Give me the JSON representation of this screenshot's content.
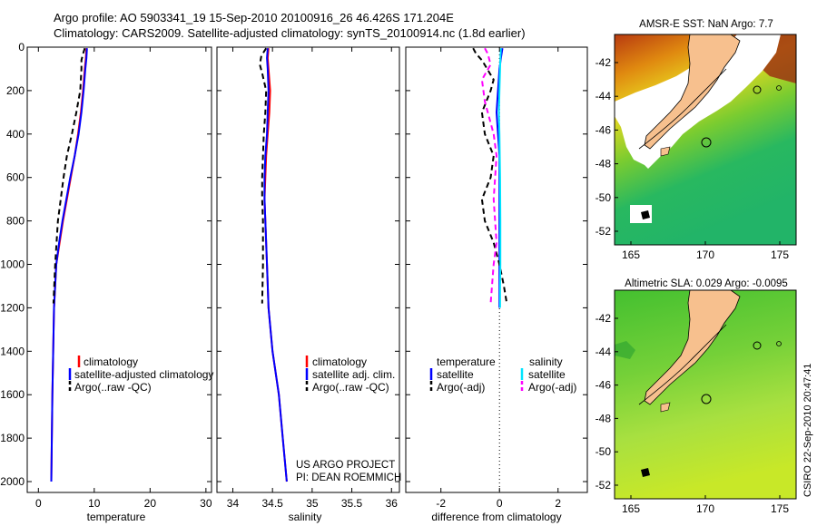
{
  "header": {
    "line1": "Argo profile: AO 5903341_19 15-Sep-2010 20100916_26 46.426S 171.204E",
    "line2": "Climatology: CARS2009. Satellite-adjusted climatology: synTS_20100914.nc (1.8d earlier)"
  },
  "chart_data": [
    {
      "type": "line",
      "id": "temperature",
      "xlabel": "temperature",
      "xlim": [
        -2,
        31
      ],
      "ylim": [
        0,
        2050
      ],
      "xticks": [
        0,
        10,
        20,
        30
      ],
      "xtick_labels": [
        "0",
        "10",
        "20",
        "30"
      ],
      "yticks": [
        0,
        200,
        400,
        600,
        800,
        1000,
        1200,
        1400,
        1600,
        1800,
        2000
      ],
      "ytick_labels": [
        "0",
        "200",
        "400",
        "600",
        "800",
        "1000",
        "1200",
        "1400",
        "1600",
        "1800",
        "2000"
      ],
      "legend": [
        "climatology",
        "satellite-adjusted climatology",
        "Argo(..raw -QC)"
      ],
      "series": [
        {
          "name": "climatology",
          "color": "#ff0000",
          "dash": "solid",
          "x": [
            8.6,
            8.5,
            8.3,
            8.0,
            7.6,
            7.1,
            6.5,
            5.8,
            5.1,
            4.4,
            3.8,
            3.2,
            2.8,
            2.5,
            2.3
          ],
          "y": [
            5,
            50,
            100,
            200,
            300,
            400,
            500,
            600,
            700,
            800,
            900,
            1000,
            1200,
            1600,
            2000
          ]
        },
        {
          "name": "satellite-adjusted climatology",
          "color": "#0000ff",
          "dash": "solid",
          "x": [
            8.7,
            8.6,
            8.4,
            8.1,
            7.7,
            7.2,
            6.5,
            5.7,
            5.0,
            4.3,
            3.7,
            3.2,
            2.8,
            2.5,
            2.3
          ],
          "y": [
            5,
            50,
            100,
            200,
            300,
            400,
            500,
            600,
            700,
            800,
            900,
            1000,
            1200,
            1600,
            2000
          ]
        },
        {
          "name": "Argo(..raw -QC)",
          "color": "#000000",
          "dash": "dashed",
          "x": [
            8.3,
            8.0,
            7.7,
            7.7,
            7.5,
            6.8,
            6.0,
            5.1,
            4.5,
            4.0,
            3.5,
            3.0,
            2.7
          ],
          "y": [
            5,
            30,
            60,
            100,
            200,
            300,
            400,
            500,
            600,
            700,
            800,
            1000,
            1180
          ]
        }
      ]
    },
    {
      "type": "line",
      "id": "salinity",
      "xlabel": "salinity",
      "xlim": [
        33.8,
        36.1
      ],
      "ylim": [
        0,
        2050
      ],
      "xticks": [
        34,
        34.5,
        35,
        35.5,
        36
      ],
      "xtick_labels": [
        "34",
        "34.5",
        "35",
        "35.5",
        "36"
      ],
      "legend": [
        "climatology",
        "satellite adj. clim.",
        "Argo(..raw -QC)"
      ],
      "series": [
        {
          "name": "climatology",
          "color": "#ff0000",
          "dash": "solid",
          "x": [
            34.45,
            34.44,
            34.45,
            34.47,
            34.46,
            34.44,
            34.42,
            34.41,
            34.4,
            34.41,
            34.43,
            34.45,
            34.5,
            34.58,
            34.63,
            34.68
          ],
          "y": [
            5,
            50,
            100,
            200,
            300,
            400,
            500,
            600,
            700,
            800,
            1000,
            1200,
            1400,
            1600,
            1800,
            2000
          ]
        },
        {
          "name": "satellite adj. clim.",
          "color": "#0000ff",
          "dash": "solid",
          "x": [
            34.44,
            34.43,
            34.44,
            34.45,
            34.44,
            34.43,
            34.41,
            34.4,
            34.4,
            34.41,
            34.43,
            34.45,
            34.5,
            34.58,
            34.63,
            34.68
          ],
          "y": [
            5,
            50,
            100,
            200,
            300,
            400,
            500,
            600,
            700,
            800,
            1000,
            1200,
            1400,
            1600,
            1800,
            2000
          ]
        },
        {
          "name": "Argo(..raw -QC)",
          "color": "#000000",
          "dash": "dashed",
          "x": [
            34.42,
            34.36,
            34.34,
            34.37,
            34.42,
            34.41,
            34.39,
            34.38,
            34.37,
            34.37,
            34.38,
            34.38,
            34.37
          ],
          "y": [
            5,
            40,
            80,
            120,
            200,
            300,
            400,
            500,
            600,
            700,
            800,
            1000,
            1180
          ]
        }
      ]
    },
    {
      "type": "line",
      "id": "difference",
      "xlabel": "difference from climatology",
      "xlim": [
        -3.2,
        3.0
      ],
      "ylim": [
        0,
        2050
      ],
      "xticks": [
        -2,
        0,
        2
      ],
      "xtick_labels": [
        "-2",
        "0",
        "2"
      ],
      "zero_line": 0,
      "legend_title_left": "temperature",
      "legend_title_right": "salinity",
      "legend_left": [
        "satellite",
        "Argo(-adj)"
      ],
      "legend_right": [
        "satellite",
        "Argo(-adj)"
      ],
      "series": [
        {
          "name": "temperature satellite",
          "color": "#0000ff",
          "dash": "solid",
          "x": [
            0.1,
            0.05,
            0.0,
            -0.05,
            -0.1,
            -0.05,
            0.0,
            0.0,
            0.0,
            0.0,
            0.0
          ],
          "y": [
            5,
            50,
            100,
            200,
            300,
            400,
            500,
            600,
            800,
            1000,
            1200
          ]
        },
        {
          "name": "temperature Argo(-adj)",
          "color": "#000000",
          "dash": "dashed",
          "x": [
            -0.9,
            -0.8,
            -0.6,
            -0.2,
            -0.3,
            -0.6,
            -0.5,
            -0.2,
            -0.3,
            -0.6,
            -0.5,
            -0.2,
            0.0,
            0.15,
            0.25
          ],
          "y": [
            5,
            30,
            60,
            150,
            200,
            300,
            400,
            500,
            600,
            700,
            800,
            900,
            1000,
            1100,
            1180
          ]
        },
        {
          "name": "salinity satellite",
          "color": "#00e5ff",
          "dash": "solid",
          "x": [
            0.05,
            0.03,
            0.02,
            0.0,
            -0.02,
            0.0,
            0.02,
            0.03,
            0.03,
            0.02,
            0.02
          ],
          "y": [
            5,
            50,
            100,
            200,
            300,
            400,
            600,
            800,
            1000,
            1100,
            1200
          ]
        },
        {
          "name": "salinity Argo(-adj)",
          "color": "#ff00ff",
          "dash": "dashed",
          "x": [
            -0.5,
            -0.4,
            -0.3,
            -0.6,
            -0.5,
            -0.2,
            -0.1,
            -0.15,
            -0.2,
            -0.15,
            -0.1,
            -0.2,
            -0.3
          ],
          "y": [
            5,
            30,
            80,
            150,
            250,
            400,
            500,
            600,
            700,
            800,
            900,
            1000,
            1180
          ]
        }
      ]
    }
  ],
  "maps": {
    "sst": {
      "title": "AMSR-E SST: NaN Argo: 7.7",
      "xticks": [
        "165",
        "170",
        "175"
      ],
      "yticks": [
        "-42",
        "-44",
        "-46",
        "-48",
        "-50",
        "-52"
      ]
    },
    "sla": {
      "title": "Altimetric SLA: 0.029 Argo: -0.0095",
      "xticks": [
        "165",
        "170",
        "175"
      ],
      "yticks": [
        "-42",
        "-44",
        "-46",
        "-48",
        "-50",
        "-52"
      ]
    }
  },
  "credits": {
    "line1": "US ARGO PROJECT",
    "line2": "PI: DEAN ROEMMICH",
    "side_stamp": "CSIRO 22-Sep-2010 20:47:41"
  }
}
